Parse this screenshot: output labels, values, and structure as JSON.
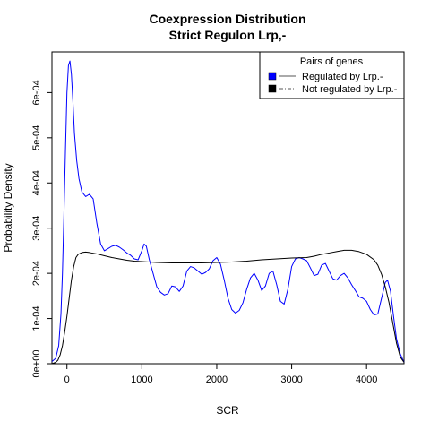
{
  "chart_data": {
    "type": "line",
    "title": "Coexpression Distribution",
    "subtitle": "Strict Regulon Lrp,-",
    "xlabel": "SCR",
    "ylabel": "Probability Density",
    "xlim": [
      -200,
      4500
    ],
    "ylim": [
      0,
      0.00069
    ],
    "x_ticks": [
      0,
      1000,
      2000,
      3000,
      4000
    ],
    "x_tick_labels": [
      "0",
      "1000",
      "2000",
      "3000",
      "4000"
    ],
    "y_ticks": [
      0,
      0.0001,
      0.0002,
      0.0003,
      0.0004,
      0.0005,
      0.0006
    ],
    "y_tick_labels": [
      "0e+00",
      "1e-04",
      "2e-04",
      "3e-04",
      "4e-04",
      "5e-04",
      "6e-04"
    ],
    "grid": false,
    "legend": {
      "title": "Pairs of genes",
      "position": "top-right",
      "entries": [
        "Regulated by  Lrp.-",
        "Not regulated by  Lrp.-"
      ]
    },
    "series": [
      {
        "name": "Regulated by  Lrp.-",
        "color": "#0000ff",
        "x": [
          -200,
          -150,
          -110,
          -80,
          -60,
          -40,
          -20,
          0,
          20,
          40,
          60,
          80,
          100,
          130,
          160,
          200,
          250,
          300,
          350,
          400,
          450,
          500,
          550,
          600,
          650,
          700,
          750,
          800,
          850,
          900,
          950,
          1000,
          1030,
          1060,
          1100,
          1150,
          1200,
          1250,
          1300,
          1350,
          1400,
          1450,
          1500,
          1550,
          1600,
          1650,
          1700,
          1750,
          1800,
          1850,
          1900,
          1950,
          2000,
          2050,
          2100,
          2150,
          2200,
          2250,
          2300,
          2350,
          2400,
          2450,
          2500,
          2550,
          2600,
          2650,
          2700,
          2750,
          2800,
          2850,
          2900,
          2950,
          3000,
          3050,
          3100,
          3150,
          3200,
          3250,
          3300,
          3350,
          3400,
          3450,
          3500,
          3550,
          3600,
          3650,
          3700,
          3750,
          3800,
          3850,
          3900,
          3950,
          4000,
          4050,
          4100,
          4150,
          4200,
          4250,
          4280,
          4320,
          4360,
          4400,
          4450,
          4500
        ],
        "y": [
          5e-06,
          1.2e-05,
          4e-05,
          0.00011,
          0.0002,
          0.00033,
          0.00047,
          0.0006,
          0.00066,
          0.00067,
          0.00064,
          0.00058,
          0.00051,
          0.00045,
          0.00041,
          0.00038,
          0.00037,
          0.000375,
          0.000365,
          0.00031,
          0.000265,
          0.00025,
          0.000255,
          0.00026,
          0.000262,
          0.000258,
          0.000252,
          0.000245,
          0.00024,
          0.000232,
          0.00023,
          0.00025,
          0.000265,
          0.00026,
          0.00023,
          0.0002,
          0.00017,
          0.000158,
          0.000152,
          0.000155,
          0.000172,
          0.00017,
          0.00016,
          0.000172,
          0.000205,
          0.000215,
          0.000212,
          0.000205,
          0.000198,
          0.000202,
          0.00021,
          0.000228,
          0.000235,
          0.00022,
          0.000185,
          0.000145,
          0.00012,
          0.000112,
          0.000118,
          0.000135,
          0.000165,
          0.00019,
          0.0002,
          0.000185,
          0.000162,
          0.000172,
          0.0002,
          0.000205,
          0.000175,
          0.000138,
          0.000132,
          0.000165,
          0.000215,
          0.000232,
          0.000235,
          0.000232,
          0.000228,
          0.000212,
          0.000195,
          0.000198,
          0.000218,
          0.000222,
          0.000205,
          0.000188,
          0.000185,
          0.000195,
          0.0002,
          0.00019,
          0.000175,
          0.000162,
          0.000148,
          0.000145,
          0.000138,
          0.00012,
          0.000108,
          0.00011,
          0.000145,
          0.00018,
          0.000185,
          0.00016,
          0.000105,
          5.5e-05,
          2.2e-05,
          3e-06
        ]
      },
      {
        "name": "Not regulated by  Lrp.-",
        "color": "#000000",
        "x": [
          -200,
          -150,
          -120,
          -90,
          -60,
          -30,
          0,
          30,
          60,
          90,
          120,
          150,
          200,
          250,
          300,
          400,
          500,
          600,
          700,
          800,
          900,
          1000,
          1200,
          1400,
          1600,
          1800,
          2000,
          2200,
          2400,
          2600,
          2800,
          3000,
          3200,
          3300,
          3400,
          3500,
          3600,
          3700,
          3800,
          3900,
          4000,
          4100,
          4150,
          4200,
          4250,
          4300,
          4350,
          4400,
          4450,
          4500
        ],
        "y": [
          0.0,
          3e-06,
          8e-06,
          2e-05,
          4e-05,
          7e-05,
          0.000105,
          0.000145,
          0.000185,
          0.000215,
          0.000235,
          0.000242,
          0.000246,
          0.000247,
          0.000246,
          0.000243,
          0.000239,
          0.000235,
          0.000232,
          0.000229,
          0.000227,
          0.000226,
          0.000224,
          0.000223,
          0.000223,
          0.000223,
          0.000224,
          0.000225,
          0.000227,
          0.00023,
          0.000232,
          0.000234,
          0.000235,
          0.000238,
          0.000242,
          0.000245,
          0.000248,
          0.000251,
          0.000251,
          0.000248,
          0.000242,
          0.00023,
          0.000218,
          0.000198,
          0.00017,
          0.000135,
          9e-05,
          4.5e-05,
          1.5e-05,
          3e-06
        ]
      }
    ]
  }
}
